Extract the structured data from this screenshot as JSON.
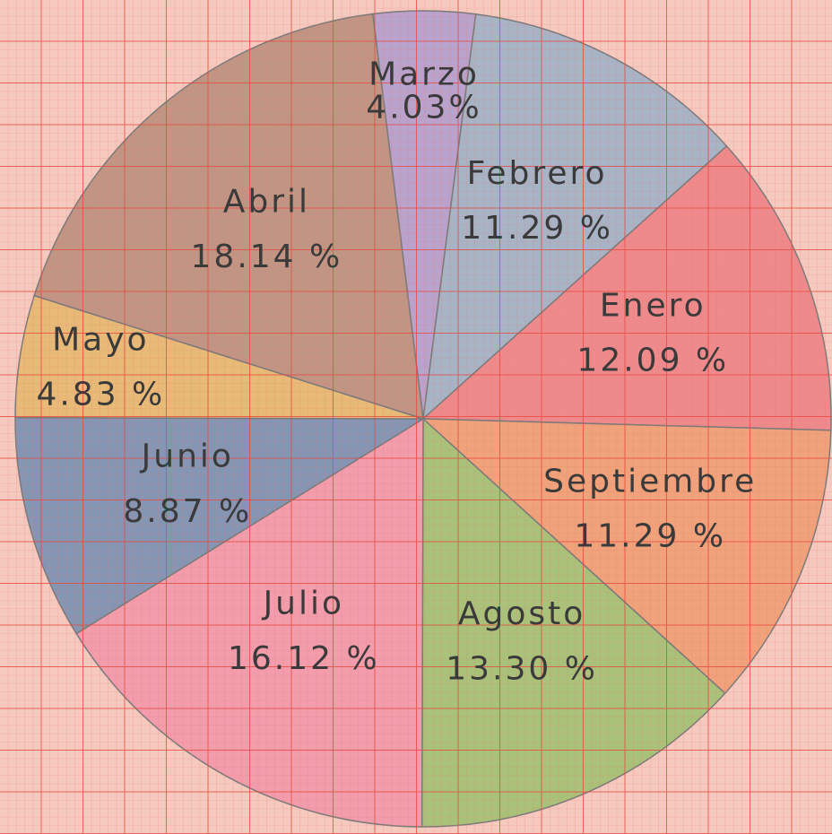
{
  "chart_data": {
    "type": "pie",
    "categories": [
      "Marzo",
      "Febrero",
      "Enero",
      "Septiembre",
      "Agosto",
      "Julio",
      "Junio",
      "Mayo",
      "Abril"
    ],
    "values": [
      4.03,
      11.29,
      12.09,
      11.29,
      13.3,
      16.12,
      8.87,
      4.83,
      18.14
    ],
    "value_labels": [
      "4.03%",
      "11.29 %",
      "12.09 %",
      "11.29 %",
      "13.30 %",
      "16.12 %",
      "8.87 %",
      "4.83 %",
      "18.14 %"
    ],
    "colors": [
      "#b9a2cc",
      "#a6b4c6",
      "#ef8a8c",
      "#f0a27a",
      "#a9c27a",
      "#f29cac",
      "#8595b4",
      "#e8ba78",
      "#c09584"
    ]
  }
}
